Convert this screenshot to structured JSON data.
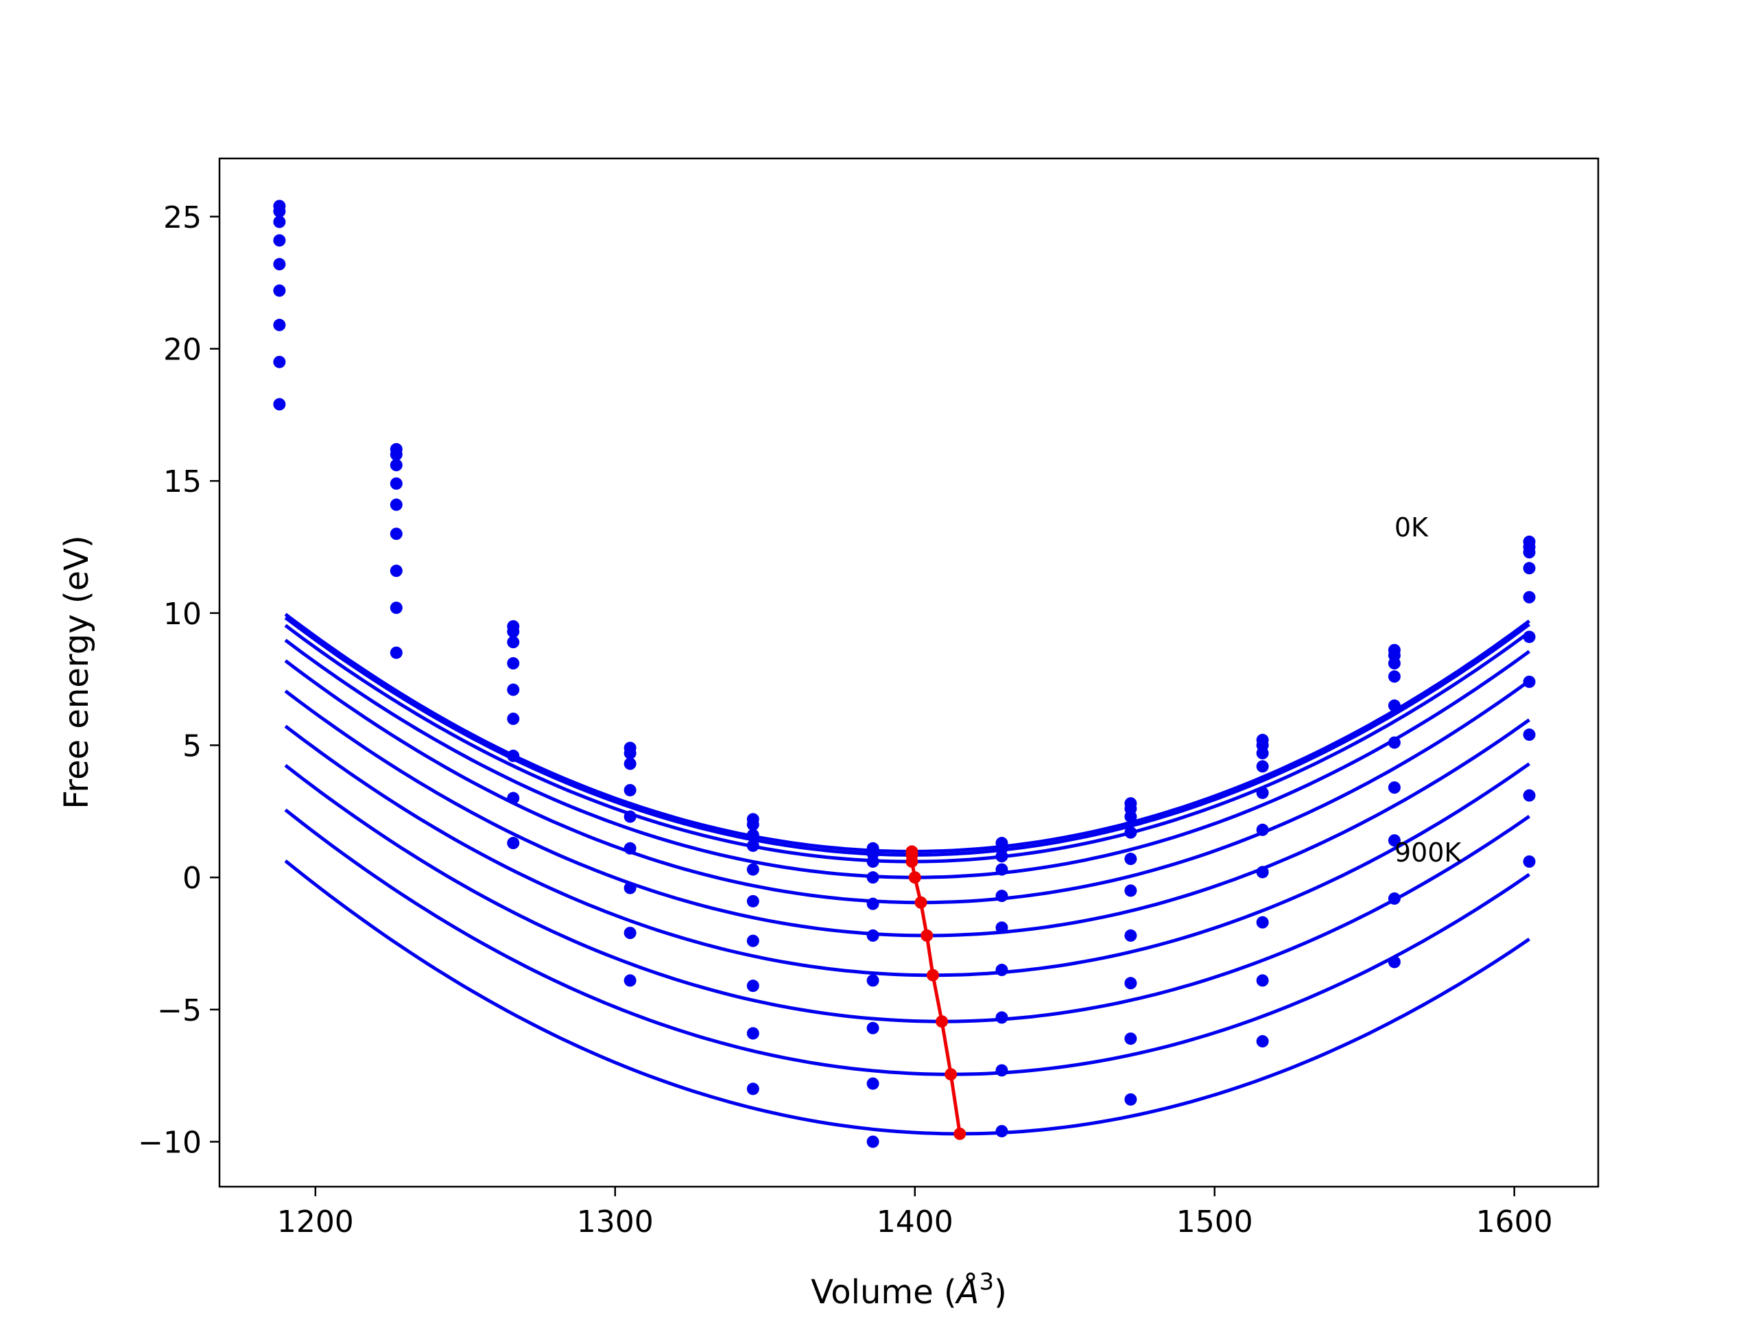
{
  "chart_data": {
    "type": "line",
    "title": "",
    "xlabel": "Volume (Å³)",
    "xlabel_main": "Volume (",
    "xlabel_unit": "Å",
    "xlabel_exp": "3",
    "xlabel_close": ")",
    "ylabel": "Free energy (eV)",
    "xlim": [
      1168,
      1628
    ],
    "ylim": [
      -11.7,
      27.2
    ],
    "xticks": [
      1200,
      1300,
      1400,
      1500,
      1600
    ],
    "xtick_labels": [
      "1200",
      "1300",
      "1400",
      "1500",
      "1600"
    ],
    "yticks": [
      -10,
      -5,
      0,
      5,
      10,
      15,
      20,
      25
    ],
    "ytick_labels": [
      "−10",
      "−5",
      "0",
      "5",
      "10",
      "15",
      "20",
      "25"
    ],
    "grid": false,
    "colors": {
      "curves": "#0000ee",
      "minimum_line": "#ee0000",
      "axes": "#000000"
    },
    "x": [
      1188,
      1227,
      1266,
      1305,
      1346,
      1386,
      1429,
      1472,
      1516,
      1560,
      1605
    ],
    "series": [
      {
        "values": [
          25.4,
          16.2,
          9.5,
          4.9,
          2.2,
          1.1,
          1.3,
          2.8,
          5.2,
          8.6,
          12.7
        ],
        "fit": {
          "a": 0.0002055,
          "v0": 1399,
          "e0": 0.98
        }
      },
      {
        "values": [
          25.2,
          16.0,
          9.3,
          4.7,
          2.0,
          0.9,
          1.1,
          2.6,
          5.0,
          8.4,
          12.5
        ],
        "fit": {
          "a": 0.0002055,
          "v0": 1399,
          "e0": 0.85
        }
      },
      {
        "values": [
          24.8,
          15.6,
          8.9,
          4.3,
          1.6,
          0.6,
          0.8,
          2.3,
          4.7,
          8.1,
          12.3
        ],
        "fit": {
          "a": 0.0002045,
          "v0": 1399,
          "e0": 0.6
        }
      },
      {
        "values": [
          24.1,
          14.9,
          8.1,
          3.3,
          1.2,
          0.0,
          0.3,
          1.7,
          4.2,
          7.6,
          11.7
        ],
        "fit": {
          "a": 0.0002035,
          "v0": 1400,
          "e0": 0.0
        }
      },
      {
        "values": [
          23.2,
          14.1,
          7.1,
          2.3,
          0.3,
          -1.0,
          -0.7,
          0.7,
          3.2,
          6.5,
          10.6
        ],
        "fit": {
          "a": 0.0002035,
          "v0": 1402,
          "e0": -0.95
        }
      },
      {
        "values": [
          22.2,
          13.0,
          6.0,
          1.1,
          -0.9,
          -2.2,
          -1.9,
          -0.5,
          1.8,
          5.1,
          9.1
        ],
        "fit": {
          "a": 0.000202,
          "v0": 1404,
          "e0": -2.2
        }
      },
      {
        "values": [
          20.9,
          11.6,
          4.6,
          -0.4,
          -2.4,
          -3.9,
          -3.5,
          -2.2,
          0.2,
          3.4,
          7.4
        ],
        "fit": {
          "a": 0.000202,
          "v0": 1406,
          "e0": -3.7
        }
      },
      {
        "values": [
          19.5,
          10.2,
          3.0,
          -2.1,
          -4.1,
          -5.7,
          -5.3,
          -4.0,
          -1.7,
          1.4,
          5.4
        ],
        "fit": {
          "a": 0.000202,
          "v0": 1409,
          "e0": -5.45
        }
      },
      {
        "values": [
          17.9,
          8.5,
          1.3,
          -3.9,
          -5.9,
          -7.8,
          -7.3,
          -6.1,
          -3.9,
          -0.8,
          3.1
        ],
        "fit": {
          "a": 0.000203,
          "v0": 1412,
          "e0": -7.45
        }
      },
      {
        "values": [
          null,
          null,
          null,
          null,
          -8.0,
          -10.0,
          -9.6,
          -8.4,
          -6.2,
          -3.2,
          0.6
        ],
        "fit": {
          "a": 0.000204,
          "v0": 1415,
          "e0": -9.7
        }
      }
    ],
    "minimum_line": {
      "x": [
        1399,
        1399,
        1399,
        1400,
        1402,
        1404,
        1406,
        1409,
        1412,
        1415
      ],
      "y": [
        0.98,
        0.85,
        0.6,
        0.0,
        -0.95,
        -2.2,
        -3.7,
        -5.45,
        -7.45,
        -9.7
      ]
    },
    "annotations": [
      {
        "text": "0K",
        "x": 1560,
        "y": 12.9
      },
      {
        "text": "900K",
        "x": 1560,
        "y": 0.6
      }
    ]
  }
}
